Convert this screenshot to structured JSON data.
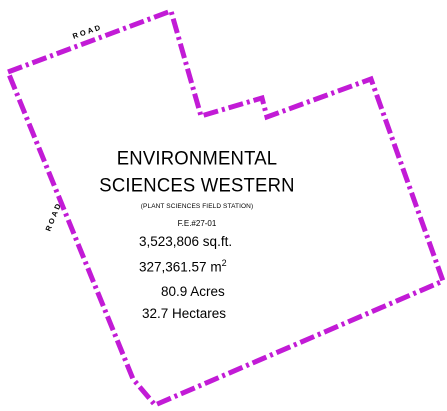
{
  "map": {
    "boundary_color": "#c21bd6",
    "title_line1": "ENVIRONMENTAL",
    "title_line2": "SCIENCES WESTERN",
    "subtitle": "(PLANT SCIENCES FIELD STATION)",
    "file_ref": "F.E.#27-01",
    "area_sqft": "3,523,806 sq.ft.",
    "area_sqm_value": "327,361.57 m",
    "area_sqm_exponent": "2",
    "area_acres": "80.9 Acres",
    "area_hectares": "32.7 Hectares",
    "road_label_top": "ROAD",
    "road_label_left": "ROAD"
  }
}
